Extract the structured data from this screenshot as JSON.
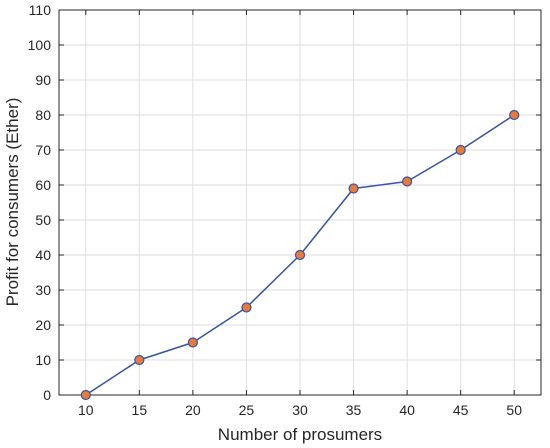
{
  "colors": {
    "line": "#3554a8",
    "marker_fill": "#ea7a37",
    "marker_edge": "#3554a8",
    "grid": "#dedede",
    "axis": "#262626",
    "background": "#ffffff"
  },
  "chart_data": {
    "type": "line",
    "title": "",
    "xlabel": "Number of prosumers",
    "ylabel": "Profit for consumers (Ether)",
    "xlim": [
      7.5,
      52.5
    ],
    "ylim": [
      0,
      110
    ],
    "xticks": [
      10,
      15,
      20,
      25,
      30,
      35,
      40,
      45,
      50
    ],
    "yticks": [
      0,
      10,
      20,
      30,
      40,
      50,
      60,
      70,
      80,
      90,
      100,
      110
    ],
    "grid": true,
    "legend": "none",
    "series": [
      {
        "x": [
          10,
          15,
          20,
          25,
          30,
          35,
          40,
          45,
          50
        ],
        "y": [
          0,
          10,
          15,
          25,
          40,
          59,
          61,
          70,
          80
        ]
      }
    ]
  }
}
